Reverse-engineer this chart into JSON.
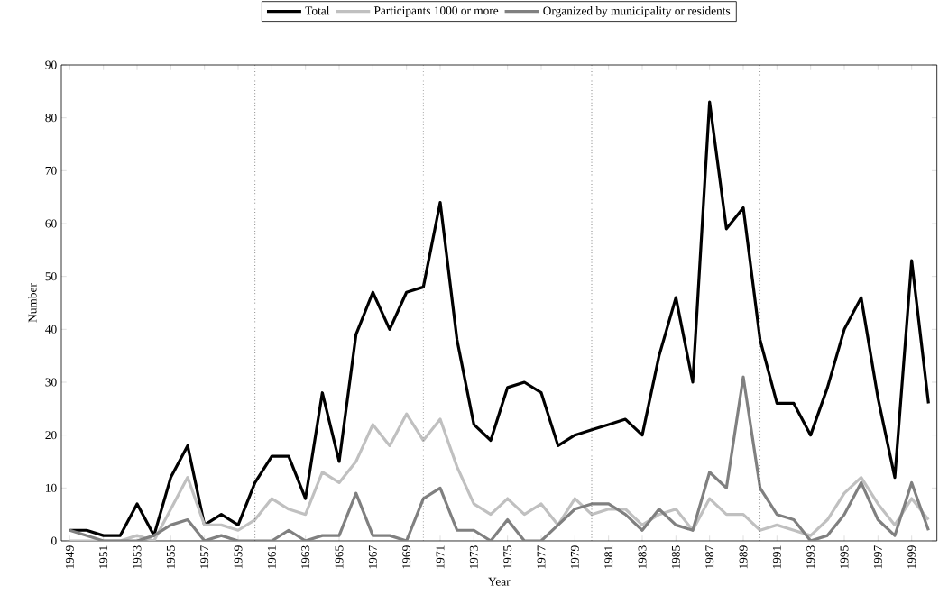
{
  "chart_data": {
    "type": "line",
    "xlabel": "Year",
    "ylabel": "Number",
    "x": [
      1949,
      1950,
      1951,
      1952,
      1953,
      1954,
      1955,
      1956,
      1957,
      1958,
      1959,
      1960,
      1961,
      1962,
      1963,
      1964,
      1965,
      1966,
      1967,
      1968,
      1969,
      1970,
      1971,
      1972,
      1973,
      1974,
      1975,
      1976,
      1977,
      1978,
      1979,
      1980,
      1981,
      1982,
      1983,
      1984,
      1985,
      1986,
      1987,
      1988,
      1989,
      1990,
      1991,
      1992,
      1993,
      1994,
      1995,
      1996,
      1997,
      1998,
      1999,
      2000
    ],
    "series": [
      {
        "name": "Total",
        "color": "#000000",
        "values": [
          2,
          2,
          1,
          1,
          7,
          1,
          12,
          18,
          3,
          5,
          3,
          11,
          16,
          16,
          8,
          28,
          15,
          39,
          47,
          40,
          47,
          48,
          64,
          38,
          22,
          19,
          29,
          30,
          28,
          18,
          20,
          21,
          22,
          23,
          20,
          35,
          46,
          30,
          83,
          59,
          63,
          38,
          26,
          26,
          20,
          29,
          40,
          46,
          27,
          12,
          53,
          26
        ]
      },
      {
        "name": "Participants 1000 or more",
        "color": "#c0c0c0",
        "values": [
          0,
          0,
          0,
          0,
          1,
          0,
          6,
          12,
          3,
          3,
          2,
          4,
          8,
          6,
          5,
          13,
          11,
          15,
          22,
          18,
          24,
          19,
          23,
          14,
          7,
          5,
          8,
          5,
          7,
          3,
          8,
          5,
          6,
          6,
          3,
          5,
          6,
          2,
          8,
          5,
          5,
          2,
          3,
          2,
          1,
          4,
          9,
          12,
          7,
          3,
          8,
          4
        ]
      },
      {
        "name": "Organized by municipality or residents",
        "color": "#808080",
        "values": [
          2,
          1,
          0,
          0,
          0,
          1,
          3,
          4,
          0,
          1,
          0,
          0,
          0,
          2,
          0,
          1,
          1,
          9,
          1,
          1,
          0,
          8,
          10,
          2,
          2,
          0,
          4,
          0,
          0,
          3,
          6,
          7,
          7,
          5,
          2,
          6,
          3,
          2,
          13,
          10,
          31,
          10,
          5,
          4,
          0,
          1,
          5,
          11,
          4,
          1,
          11,
          2
        ]
      }
    ],
    "xlim": [
      1948.5,
      2000.5
    ],
    "xticks": [
      1949,
      1951,
      1953,
      1955,
      1957,
      1959,
      1961,
      1963,
      1965,
      1967,
      1969,
      1971,
      1973,
      1975,
      1977,
      1979,
      1981,
      1983,
      1985,
      1987,
      1989,
      1991,
      1993,
      1995,
      1997,
      1999
    ],
    "ylim": [
      0,
      90
    ],
    "yticks": [
      0,
      10,
      20,
      30,
      40,
      50,
      60,
      70,
      80,
      90
    ],
    "ref_lines": [
      {
        "axis": "x",
        "value": 1960
      },
      {
        "axis": "x",
        "value": 1970
      },
      {
        "axis": "x",
        "value": 1980
      },
      {
        "axis": "x",
        "value": 1990
      }
    ],
    "legend": "top"
  }
}
